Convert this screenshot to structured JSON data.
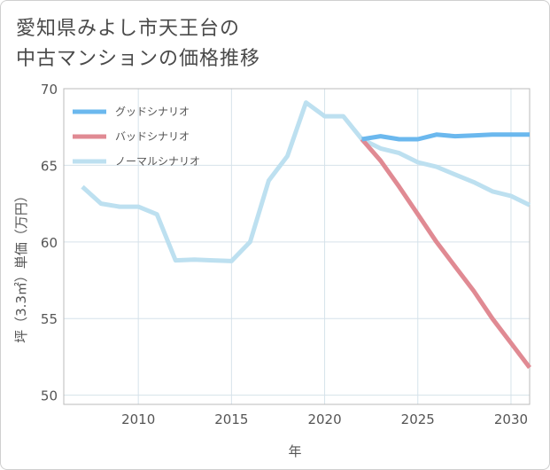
{
  "title_lines": [
    "愛知県みよし市天王台の",
    "中古マンションの価格推移"
  ],
  "chart_data": {
    "type": "line",
    "title": "愛知県みよし市天王台の中古マンションの価格推移",
    "xlabel": "年",
    "ylabel": "坪（3.3㎡）単価（万円）",
    "xlim": [
      2006,
      2031
    ],
    "ylim": [
      49.4,
      70
    ],
    "xticks": [
      2010,
      2015,
      2020,
      2025,
      2030
    ],
    "yticks": [
      50,
      55,
      60,
      65,
      70
    ],
    "grid": true,
    "legend_position": "top-left",
    "series": [
      {
        "name": "グッドシナリオ",
        "color": "#6bb8ee",
        "x": [
          2022,
          2023,
          2024,
          2025,
          2026,
          2027,
          2028,
          2029,
          2030,
          2031
        ],
        "y": [
          66.7,
          66.9,
          66.7,
          66.7,
          67.0,
          66.9,
          66.95,
          67.0,
          67.0,
          67.0
        ]
      },
      {
        "name": "バッドシナリオ",
        "color": "#e08a93",
        "x": [
          2022,
          2023,
          2024,
          2025,
          2026,
          2027,
          2028,
          2029,
          2030,
          2031
        ],
        "y": [
          66.7,
          65.3,
          63.6,
          61.8,
          60.0,
          58.4,
          56.8,
          55.0,
          53.4,
          51.8
        ]
      },
      {
        "name": "ノーマルシナリオ",
        "color": "#bde0f0",
        "x": [
          2007,
          2008,
          2009,
          2010,
          2011,
          2012,
          2013,
          2014,
          2015,
          2016,
          2017,
          2018,
          2019,
          2020,
          2021,
          2022,
          2023,
          2024,
          2025,
          2026,
          2027,
          2028,
          2029,
          2030,
          2031
        ],
        "y": [
          63.6,
          62.5,
          62.3,
          62.3,
          61.8,
          58.8,
          58.85,
          58.8,
          58.75,
          60.0,
          64.0,
          65.6,
          69.1,
          68.2,
          68.2,
          66.7,
          66.1,
          65.8,
          65.2,
          64.9,
          64.4,
          63.9,
          63.3,
          63.0,
          62.4
        ]
      }
    ]
  }
}
